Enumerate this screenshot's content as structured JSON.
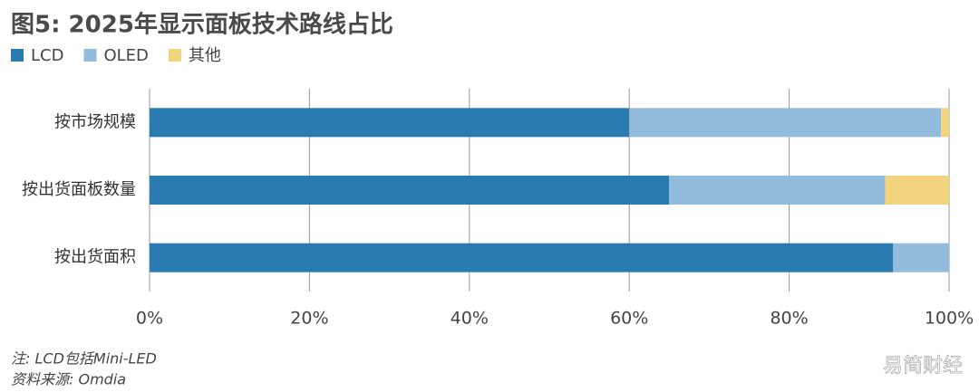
{
  "chart_data": {
    "type": "bar",
    "orientation": "horizontal",
    "stacked": true,
    "title": "图5: 2025年显示面板技术路线占比",
    "categories": [
      "按市场规模",
      "按出货面板数量",
      "按出货面积"
    ],
    "series": [
      {
        "name": "LCD",
        "color": "#2a7bb0",
        "values": [
          60,
          65,
          93
        ]
      },
      {
        "name": "OLED",
        "color": "#93bbdc",
        "values": [
          39,
          27,
          7
        ]
      },
      {
        "name": "其他",
        "color": "#f2d47e",
        "values": [
          1,
          8,
          0
        ]
      }
    ],
    "xlim": [
      0,
      100
    ],
    "xticks": [
      {
        "value": 0,
        "label": "0%"
      },
      {
        "value": 20,
        "label": "20%"
      },
      {
        "value": 40,
        "label": "40%"
      },
      {
        "value": 60,
        "label": "60%"
      },
      {
        "value": 80,
        "label": "80%"
      },
      {
        "value": 100,
        "label": "100%"
      }
    ],
    "grid": true,
    "legend": "top-left",
    "notes": [
      "注: LCD包括Mini-LED",
      "资料来源: Omdia"
    ],
    "watermark": "易简财经"
  }
}
